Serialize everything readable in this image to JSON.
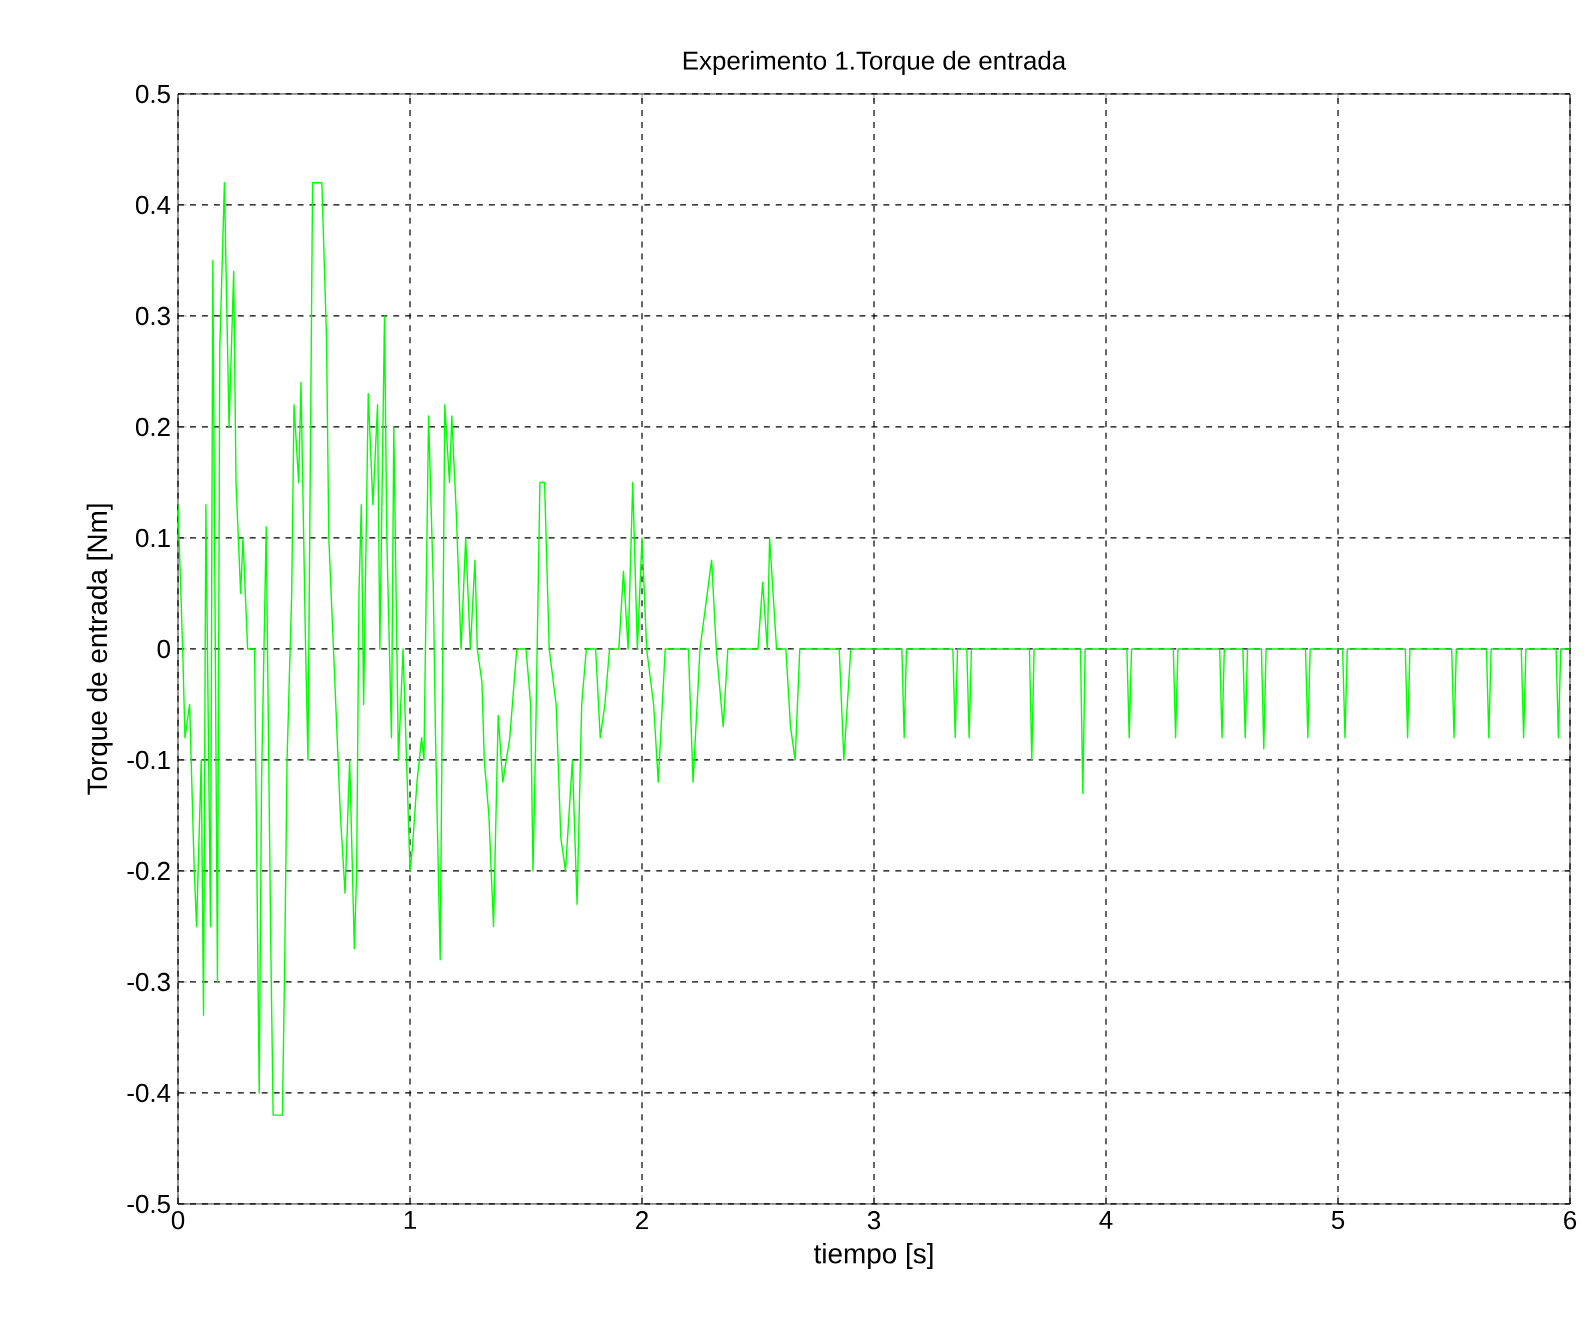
{
  "chart_data": {
    "type": "line",
    "title": "Experimento 1.Torque de entrada",
    "xlabel": "tiempo [s]",
    "ylabel": "Torque de entrada [Nm]",
    "xlim": [
      0,
      6
    ],
    "ylim": [
      -0.5,
      0.5
    ],
    "xticks": [
      0,
      1,
      2,
      3,
      4,
      5,
      6
    ],
    "yticks": [
      -0.5,
      -0.4,
      -0.3,
      -0.2,
      -0.1,
      0,
      0.1,
      0.2,
      0.3,
      0.4,
      0.5
    ],
    "grid": true,
    "series": [
      {
        "color": "#00ff00",
        "line_style": "solid",
        "marker": "none",
        "x": [
          0,
          0.02,
          0.03,
          0.05,
          0.07,
          0.08,
          0.1,
          0.11,
          0.12,
          0.14,
          0.15,
          0.17,
          0.18,
          0.2,
          0.22,
          0.24,
          0.25,
          0.27,
          0.28,
          0.3,
          0.33,
          0.35,
          0.36,
          0.38,
          0.4,
          0.41,
          0.45,
          0.46,
          0.47,
          0.49,
          0.5,
          0.52,
          0.53,
          0.55,
          0.56,
          0.58,
          0.62,
          0.64,
          0.65,
          0.67,
          0.7,
          0.72,
          0.74,
          0.76,
          0.77,
          0.78,
          0.79,
          0.8,
          0.82,
          0.84,
          0.86,
          0.87,
          0.89,
          0.9,
          0.92,
          0.93,
          0.95,
          0.97,
          1.0,
          1.01,
          1.03,
          1.05,
          1.06,
          1.08,
          1.1,
          1.11,
          1.13,
          1.15,
          1.17,
          1.18,
          1.2,
          1.22,
          1.24,
          1.26,
          1.28,
          1.29,
          1.31,
          1.32,
          1.34,
          1.36,
          1.38,
          1.4,
          1.43,
          1.46,
          1.5,
          1.52,
          1.53,
          1.54,
          1.56,
          1.58,
          1.6,
          1.63,
          1.65,
          1.67,
          1.7,
          1.72,
          1.74,
          1.76,
          1.8,
          1.82,
          1.84,
          1.86,
          1.9,
          1.92,
          1.94,
          1.96,
          1.98,
          2.0,
          2.02,
          2.05,
          2.07,
          2.1,
          2.2,
          2.22,
          2.25,
          2.3,
          2.32,
          2.35,
          2.37,
          2.5,
          2.52,
          2.54,
          2.55,
          2.58,
          2.62,
          2.64,
          2.66,
          2.68,
          2.85,
          2.87,
          2.9,
          3.12,
          3.13,
          3.14,
          3.34,
          3.35,
          3.36,
          3.4,
          3.41,
          3.42,
          3.67,
          3.68,
          3.69,
          3.89,
          3.9,
          3.91,
          4.09,
          4.1,
          4.11,
          4.29,
          4.3,
          4.31,
          4.49,
          4.5,
          4.51,
          4.59,
          4.6,
          4.61,
          4.67,
          4.68,
          4.69,
          4.86,
          4.87,
          4.88,
          5.02,
          5.03,
          5.04,
          5.29,
          5.3,
          5.31,
          5.49,
          5.5,
          5.51,
          5.64,
          5.65,
          5.66,
          5.79,
          5.8,
          5.81,
          5.94,
          5.95,
          5.96,
          6
        ],
        "values": [
          0.13,
          0,
          -0.08,
          -0.05,
          -0.2,
          -0.25,
          -0.1,
          -0.33,
          0.13,
          -0.25,
          0.35,
          -0.3,
          0.27,
          0.42,
          0.2,
          0.34,
          0.15,
          0.05,
          0.1,
          0,
          0,
          -0.4,
          -0.12,
          0.11,
          -0.27,
          -0.42,
          -0.42,
          -0.28,
          -0.1,
          0.05,
          0.22,
          0.15,
          0.24,
          0,
          -0.1,
          0.42,
          0.42,
          0.28,
          0.1,
          0,
          -0.15,
          -0.22,
          -0.1,
          -0.27,
          -0.2,
          0.05,
          0.13,
          -0.05,
          0.23,
          0.13,
          0.22,
          0,
          0.3,
          0.1,
          -0.08,
          0.2,
          -0.1,
          0,
          -0.2,
          -0.18,
          -0.12,
          -0.08,
          -0.1,
          0.21,
          0.06,
          -0.08,
          -0.28,
          0.22,
          0.15,
          0.21,
          0.12,
          0,
          0.1,
          0,
          0.08,
          0,
          -0.03,
          -0.1,
          -0.15,
          -0.25,
          -0.06,
          -0.12,
          -0.08,
          0,
          0,
          -0.05,
          -0.2,
          -0.1,
          0.15,
          0.15,
          0,
          -0.05,
          -0.17,
          -0.2,
          -0.1,
          -0.23,
          -0.05,
          0,
          0,
          -0.08,
          -0.05,
          0,
          0,
          0.07,
          0,
          0.15,
          0,
          0.1,
          0,
          -0.05,
          -0.12,
          0,
          0,
          -0.12,
          0,
          0.08,
          0,
          -0.07,
          0,
          0,
          0.06,
          0,
          0.1,
          0,
          0,
          -0.07,
          -0.1,
          0,
          0,
          -0.1,
          0,
          0,
          -0.08,
          0,
          0,
          -0.08,
          0,
          0,
          -0.08,
          0,
          0,
          -0.1,
          0,
          0,
          -0.13,
          0,
          0,
          -0.08,
          0,
          0,
          -0.08,
          0,
          0,
          -0.08,
          0,
          0,
          -0.08,
          0,
          0,
          -0.09,
          0,
          0,
          -0.08,
          0,
          0,
          -0.08,
          0,
          0,
          -0.08,
          0,
          0,
          -0.08,
          0,
          0,
          -0.08,
          0,
          0,
          -0.08,
          0,
          0,
          -0.08,
          0,
          0
        ]
      }
    ]
  }
}
